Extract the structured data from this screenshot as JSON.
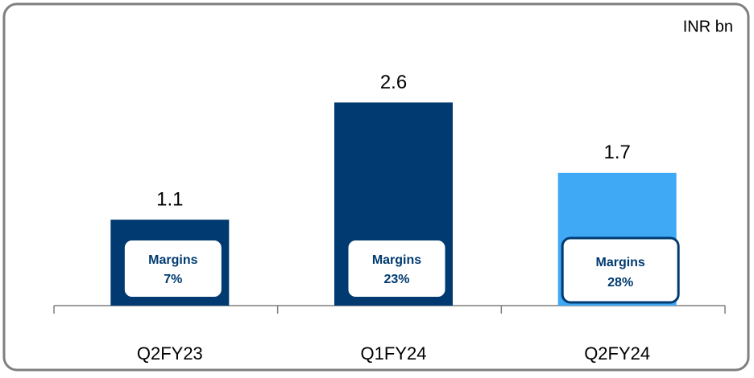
{
  "chart_data": {
    "type": "bar",
    "unit_label": "INR bn",
    "categories": [
      "Q2FY23",
      "Q1FY24",
      "Q2FY24"
    ],
    "values": [
      1.1,
      2.6,
      1.7
    ],
    "colors": [
      "#003a70",
      "#003a70",
      "#3fa9f5"
    ],
    "ylim": [
      0,
      3.5
    ],
    "margins": {
      "label": "Margins",
      "values": [
        7,
        23,
        28
      ],
      "value_labels": [
        "7%",
        "23%",
        "28%"
      ]
    }
  }
}
